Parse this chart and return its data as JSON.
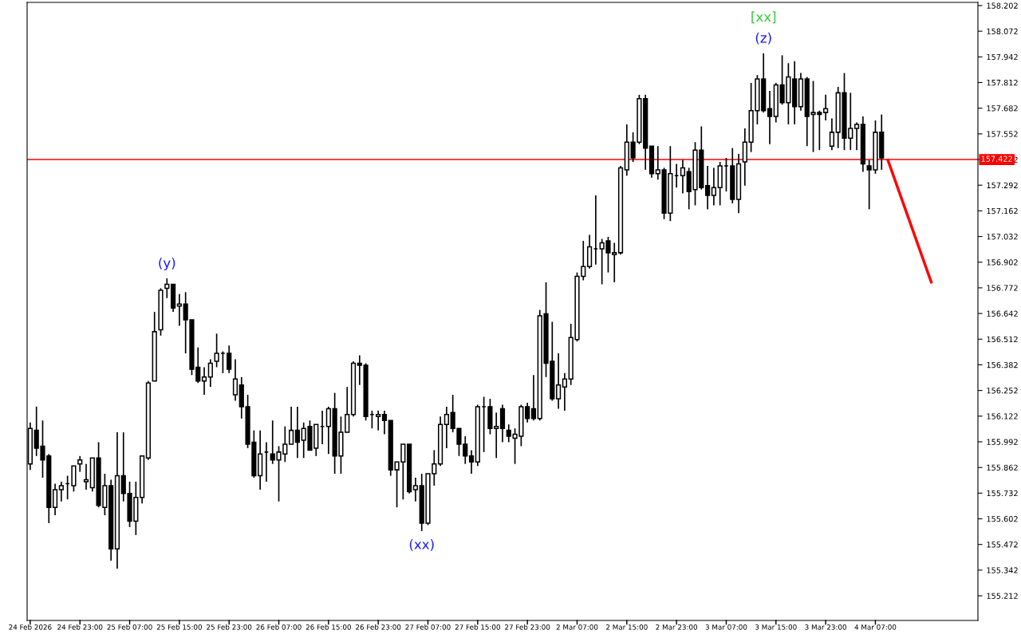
{
  "chart_data": {
    "type": "candlestick",
    "categories": [
      "24 Feb 2026",
      null,
      null,
      null,
      null,
      null,
      null,
      null,
      "24 Feb 23:00",
      null,
      null,
      null,
      null,
      null,
      null,
      null,
      "25 Feb 07:00",
      null,
      null,
      null,
      null,
      null,
      null,
      null,
      "25 Feb 15:00",
      null,
      null,
      null,
      null,
      null,
      null,
      null,
      "25 Feb 23:00",
      null,
      null,
      null,
      null,
      null,
      null,
      null,
      "26 Feb 07:00",
      null,
      null,
      null,
      null,
      null,
      null,
      null,
      "26 Feb 15:00",
      null,
      null,
      null,
      null,
      null,
      null,
      null,
      "26 Feb 23:00",
      null,
      null,
      null,
      null,
      null,
      null,
      null,
      "27 Feb 07:00",
      null,
      null,
      null,
      null,
      null,
      null,
      null,
      "27 Feb 15:00",
      null,
      null,
      null,
      null,
      null,
      null,
      null,
      "27 Feb 23:00",
      null,
      null,
      null,
      null,
      null,
      null,
      null,
      "2 Mar 07:00",
      null,
      null,
      null,
      null,
      null,
      null,
      null,
      "2 Mar 15:00",
      null,
      null,
      null,
      null,
      null,
      null,
      null,
      "2 Mar 23:00",
      null,
      null,
      null,
      null,
      null,
      null,
      null,
      "3 Mar 07:00",
      null,
      null,
      null,
      null,
      null,
      null,
      null,
      "3 Mar 15:00",
      null,
      null,
      null,
      null,
      null,
      null,
      null,
      "3 Mar 23:00",
      null,
      null,
      null,
      null,
      null,
      null,
      null,
      "4 Mar 07:00",
      null,
      null,
      null,
      null,
      null,
      null,
      null,
      null,
      null,
      null,
      null,
      null,
      null,
      null,
      null,
      null
    ],
    "ohlc": [
      [
        155.88,
        156.09,
        155.85,
        156.06
      ],
      [
        156.05,
        156.17,
        155.92,
        155.96
      ],
      [
        155.97,
        156.1,
        155.81,
        155.9
      ],
      [
        155.92,
        155.93,
        155.58,
        155.66
      ],
      [
        155.66,
        155.78,
        155.62,
        155.75
      ],
      [
        155.75,
        155.79,
        155.69,
        155.77
      ],
      [
        155.78,
        155.82,
        155.7,
        155.78
      ],
      [
        155.77,
        155.87,
        155.74,
        155.87
      ],
      [
        155.88,
        155.92,
        155.84,
        155.9
      ],
      [
        155.79,
        155.88,
        155.75,
        155.8
      ],
      [
        155.76,
        155.91,
        155.74,
        155.91
      ],
      [
        155.91,
        155.99,
        155.66,
        155.67
      ],
      [
        155.66,
        155.83,
        155.62,
        155.77
      ],
      [
        155.77,
        155.8,
        155.39,
        155.45
      ],
      [
        155.45,
        156.04,
        155.35,
        155.82
      ],
      [
        155.82,
        156.04,
        155.69,
        155.73
      ],
      [
        155.73,
        155.79,
        155.56,
        155.59
      ],
      [
        155.59,
        155.79,
        155.52,
        155.71
      ],
      [
        155.71,
        155.92,
        155.68,
        155.92
      ],
      [
        155.91,
        156.3,
        155.9,
        156.29
      ],
      [
        156.3,
        156.65,
        156.3,
        156.55
      ],
      [
        156.56,
        156.77,
        156.53,
        156.76
      ],
      [
        156.77,
        156.82,
        156.72,
        156.79
      ],
      [
        156.79,
        156.79,
        156.65,
        156.67
      ],
      [
        156.68,
        156.74,
        156.58,
        156.69
      ],
      [
        156.69,
        156.75,
        156.44,
        156.61
      ],
      [
        156.61,
        156.61,
        156.33,
        156.36
      ],
      [
        156.37,
        156.47,
        156.29,
        156.3
      ],
      [
        156.3,
        156.37,
        156.23,
        156.32
      ],
      [
        156.32,
        156.41,
        156.27,
        156.39
      ],
      [
        156.4,
        156.54,
        156.37,
        156.44
      ],
      [
        156.44,
        156.45,
        156.34,
        156.44
      ],
      [
        156.44,
        156.48,
        156.34,
        156.36
      ],
      [
        156.23,
        156.41,
        156.2,
        156.31
      ],
      [
        156.28,
        156.32,
        156.11,
        156.17
      ],
      [
        156.17,
        156.23,
        155.96,
        155.98
      ],
      [
        155.99,
        156.05,
        155.81,
        155.82
      ],
      [
        155.82,
        156.05,
        155.75,
        155.93
      ],
      [
        155.94,
        155.99,
        155.79,
        155.94
      ],
      [
        155.93,
        156.1,
        155.88,
        155.9
      ],
      [
        155.9,
        155.97,
        155.69,
        155.94
      ],
      [
        155.93,
        156.07,
        155.89,
        155.98
      ],
      [
        155.98,
        156.17,
        155.98,
        156.05
      ],
      [
        156.05,
        156.17,
        155.91,
        155.99
      ],
      [
        156.0,
        156.09,
        155.91,
        156.06
      ],
      [
        156.07,
        156.1,
        155.95,
        155.95
      ],
      [
        155.96,
        156.08,
        155.92,
        156.08
      ],
      [
        156.07,
        156.15,
        155.98,
        156.07
      ],
      [
        156.07,
        156.17,
        155.93,
        156.16
      ],
      [
        156.16,
        156.24,
        155.83,
        155.92
      ],
      [
        155.92,
        156.12,
        155.83,
        156.04
      ],
      [
        156.04,
        156.27,
        156.04,
        156.13
      ],
      [
        156.13,
        156.4,
        156.12,
        156.39
      ],
      [
        156.39,
        156.43,
        156.28,
        156.38
      ],
      [
        156.38,
        156.39,
        156.1,
        156.12
      ],
      [
        156.13,
        156.15,
        156.06,
        156.13
      ],
      [
        156.12,
        156.15,
        156.05,
        156.13
      ],
      [
        156.13,
        156.15,
        156.03,
        156.1
      ],
      [
        156.1,
        156.1,
        155.82,
        155.85
      ],
      [
        155.85,
        155.89,
        155.66,
        155.89
      ],
      [
        155.89,
        155.98,
        155.7,
        155.98
      ],
      [
        155.98,
        155.98,
        155.73,
        155.74
      ],
      [
        155.75,
        155.81,
        155.69,
        155.77
      ],
      [
        155.77,
        155.83,
        155.54,
        155.58
      ],
      [
        155.58,
        155.83,
        155.57,
        155.83
      ],
      [
        155.83,
        155.95,
        155.77,
        155.88
      ],
      [
        155.88,
        156.12,
        155.87,
        156.08
      ],
      [
        156.08,
        156.17,
        155.96,
        156.13
      ],
      [
        156.14,
        156.23,
        156.04,
        156.06
      ],
      [
        156.06,
        156.06,
        155.92,
        155.98
      ],
      [
        155.98,
        156.02,
        155.88,
        155.92
      ],
      [
        155.92,
        155.95,
        155.83,
        155.89
      ],
      [
        155.89,
        156.18,
        155.87,
        156.17
      ],
      [
        156.17,
        156.22,
        155.94,
        156.17
      ],
      [
        156.17,
        156.21,
        156.03,
        156.06
      ],
      [
        156.06,
        156.14,
        155.91,
        156.07
      ],
      [
        156.16,
        156.18,
        155.99,
        156.06
      ],
      [
        156.05,
        156.08,
        155.99,
        156.02
      ],
      [
        156.01,
        156.06,
        155.88,
        156.03
      ],
      [
        156.02,
        156.18,
        155.97,
        156.17
      ],
      [
        156.17,
        156.19,
        156.09,
        156.11
      ],
      [
        156.16,
        156.33,
        156.1,
        156.11
      ],
      [
        156.11,
        156.66,
        156.1,
        156.63
      ],
      [
        156.64,
        156.8,
        156.32,
        156.39
      ],
      [
        156.4,
        156.6,
        156.2,
        156.21
      ],
      [
        156.21,
        156.44,
        156.16,
        156.28
      ],
      [
        156.27,
        156.34,
        156.15,
        156.31
      ],
      [
        156.31,
        156.59,
        156.28,
        156.52
      ],
      [
        156.51,
        156.85,
        156.5,
        156.83
      ],
      [
        156.83,
        157.01,
        156.81,
        156.88
      ],
      [
        156.88,
        157.04,
        156.87,
        156.98
      ],
      [
        156.97,
        157.24,
        156.89,
        156.97
      ],
      [
        156.97,
        157.02,
        156.79,
        157.0
      ],
      [
        157.01,
        157.03,
        156.85,
        156.95
      ],
      [
        156.94,
        157.0,
        156.8,
        156.95
      ],
      [
        156.95,
        157.39,
        156.94,
        157.38
      ],
      [
        157.37,
        157.6,
        157.34,
        157.51
      ],
      [
        157.51,
        157.56,
        157.41,
        157.43
      ],
      [
        157.51,
        157.75,
        157.5,
        157.73
      ],
      [
        157.73,
        157.75,
        157.37,
        157.48
      ],
      [
        157.49,
        157.49,
        157.33,
        157.35
      ],
      [
        157.35,
        157.49,
        157.32,
        157.37
      ],
      [
        157.37,
        157.38,
        157.12,
        157.15
      ],
      [
        157.15,
        157.49,
        157.11,
        157.35
      ],
      [
        157.34,
        157.4,
        157.28,
        157.34
      ],
      [
        157.34,
        157.42,
        157.25,
        157.38
      ],
      [
        157.36,
        157.38,
        157.17,
        157.26
      ],
      [
        157.27,
        157.51,
        157.19,
        157.47
      ],
      [
        157.47,
        157.59,
        157.27,
        157.28
      ],
      [
        157.29,
        157.39,
        157.17,
        157.24
      ],
      [
        157.24,
        157.38,
        157.19,
        157.28
      ],
      [
        157.28,
        157.41,
        157.19,
        157.39
      ],
      [
        157.39,
        157.43,
        157.26,
        157.39
      ],
      [
        157.39,
        157.48,
        157.2,
        157.22
      ],
      [
        157.22,
        157.45,
        157.15,
        157.4
      ],
      [
        157.41,
        157.58,
        157.29,
        157.51
      ],
      [
        157.51,
        157.81,
        157.46,
        157.67
      ],
      [
        157.67,
        157.85,
        157.6,
        157.83
      ],
      [
        157.83,
        157.96,
        157.66,
        157.67
      ],
      [
        157.68,
        157.77,
        157.5,
        157.64
      ],
      [
        157.64,
        157.81,
        157.61,
        157.8
      ],
      [
        157.8,
        157.95,
        157.7,
        157.71
      ],
      [
        157.71,
        157.91,
        157.6,
        157.84
      ],
      [
        157.83,
        157.92,
        157.6,
        157.69
      ],
      [
        157.69,
        157.86,
        157.67,
        157.83
      ],
      [
        157.83,
        157.84,
        157.49,
        157.64
      ],
      [
        157.65,
        157.82,
        157.46,
        157.66
      ],
      [
        157.66,
        157.67,
        157.47,
        157.65
      ],
      [
        157.66,
        157.75,
        157.62,
        157.68
      ],
      [
        157.49,
        157.63,
        157.47,
        157.56
      ],
      [
        157.56,
        157.79,
        157.48,
        157.76
      ],
      [
        157.76,
        157.86,
        157.47,
        157.53
      ],
      [
        157.53,
        157.76,
        157.47,
        157.58
      ],
      [
        157.58,
        157.61,
        157.47,
        157.6
      ],
      [
        157.6,
        157.64,
        157.36,
        157.4
      ],
      [
        157.39,
        157.42,
        157.17,
        157.37
      ],
      [
        157.37,
        157.62,
        157.35,
        157.56
      ],
      [
        157.56,
        157.65,
        157.37,
        157.43
      ],
      null,
      null,
      null,
      null,
      null,
      null,
      null,
      null,
      null,
      null,
      null,
      null,
      null,
      null,
      null
    ],
    "series": [
      {
        "type": "line",
        "color": "#ff0000",
        "values": [
          null,
          null,
          null,
          null,
          null,
          null,
          null,
          null,
          null,
          null,
          null,
          null,
          null,
          null,
          null,
          null,
          null,
          null,
          null,
          null,
          null,
          null,
          null,
          null,
          null,
          null,
          null,
          null,
          null,
          null,
          null,
          null,
          null,
          null,
          null,
          null,
          null,
          null,
          null,
          null,
          null,
          null,
          null,
          null,
          null,
          null,
          null,
          null,
          null,
          null,
          null,
          null,
          null,
          null,
          null,
          null,
          null,
          null,
          null,
          null,
          null,
          null,
          null,
          null,
          null,
          null,
          null,
          null,
          null,
          null,
          null,
          null,
          null,
          null,
          null,
          null,
          null,
          null,
          null,
          null,
          null,
          null,
          null,
          null,
          null,
          null,
          null,
          null,
          null,
          null,
          null,
          null,
          null,
          null,
          null,
          null,
          null,
          null,
          null,
          null,
          null,
          null,
          null,
          null,
          null,
          null,
          null,
          null,
          null,
          null,
          null,
          null,
          null,
          null,
          null,
          null,
          null,
          null,
          null,
          null,
          null,
          null,
          null,
          null,
          null,
          null,
          null,
          null,
          null,
          null,
          null,
          null,
          null,
          null,
          null,
          null,
          null,
          null,
          157.42,
          null,
          null,
          null,
          null,
          null,
          null,
          156.8,
          null,
          null,
          null,
          null,
          null,
          null,
          null
        ]
      }
    ],
    "ylim": [
      155.087,
      158.218
    ],
    "yticks": [
      155.212,
      155.342,
      155.472,
      155.602,
      155.732,
      155.862,
      155.992,
      156.122,
      156.252,
      156.382,
      156.512,
      156.642,
      156.772,
      156.902,
      157.032,
      157.162,
      157.292,
      157.422,
      157.552,
      157.682,
      157.812,
      157.942,
      158.072,
      158.202
    ],
    "ref_lines": [
      {
        "axis": "y",
        "value": 157.422,
        "label": "157.422",
        "color": "#ff0000"
      }
    ],
    "annotations": [
      "(y)",
      "(xx)",
      "(z)",
      "[xx]"
    ],
    "grid": false,
    "legend": false
  }
}
